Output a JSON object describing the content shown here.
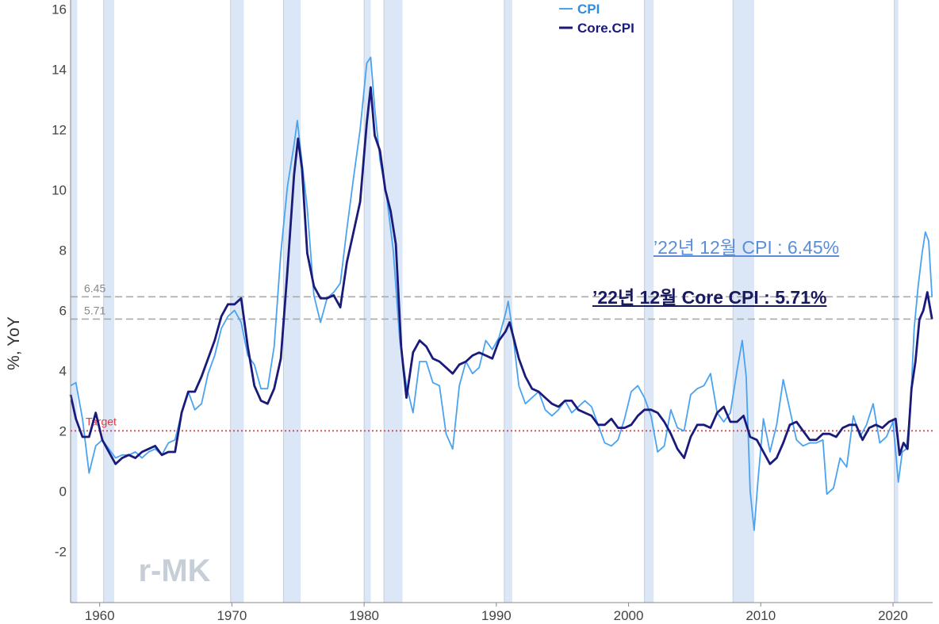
{
  "chart_data": {
    "type": "line",
    "xlabel": "",
    "ylabel": "%, YoY",
    "xlim": [
      1957.8,
      2023.0
    ],
    "ylim": [
      -3.7,
      16.3
    ],
    "x_ticks": [
      1960,
      1970,
      1980,
      1990,
      2000,
      2010,
      2020
    ],
    "x_tick_labels": [
      "1960",
      "1970",
      "1980",
      "1990",
      "2000",
      "2010",
      "2020"
    ],
    "y_ticks": [
      -2,
      0,
      2,
      4,
      6,
      8,
      10,
      12,
      14,
      16
    ],
    "y_tick_labels": [
      "-2",
      "0",
      "2",
      "4",
      "6",
      "8",
      "10",
      "12",
      "14",
      "16"
    ],
    "legend": {
      "position": "top-center",
      "entries": [
        "CPI",
        "Core.CPI"
      ]
    },
    "colors": {
      "CPI": "#4aa3f0",
      "Core.CPI": "#1a1a7a",
      "recession": "#dbe6f6",
      "reference": "#aaaaaa",
      "target": "#e0393e"
    },
    "recessions": [
      [
        1957.8,
        1958.3
      ],
      [
        1960.3,
        1961.1
      ],
      [
        1969.9,
        1970.9
      ],
      [
        1973.9,
        1975.2
      ],
      [
        1980.0,
        1980.5
      ],
      [
        1981.5,
        1982.9
      ],
      [
        1990.6,
        1991.2
      ],
      [
        2001.2,
        2001.9
      ],
      [
        2007.9,
        2009.5
      ],
      [
        2020.1,
        2020.4
      ]
    ],
    "reference_lines": [
      {
        "label": "6.45",
        "value": 6.45
      },
      {
        "label": "5.71",
        "value": 5.71
      }
    ],
    "target_line": {
      "label": "Target",
      "value": 2.0
    },
    "annotations": {
      "cpi": "’22년 12월 CPI : 6.45%",
      "core": "’22년 12월 Core CPI : 5.71%"
    },
    "watermark": "r-MK",
    "series": [
      {
        "name": "CPI",
        "x": [
          1957.8,
          1958.2,
          1958.7,
          1959.2,
          1959.7,
          1960.2,
          1960.7,
          1961.2,
          1961.7,
          1962.2,
          1962.7,
          1963.2,
          1963.7,
          1964.2,
          1964.7,
          1965.2,
          1965.7,
          1966.2,
          1966.7,
          1967.2,
          1967.7,
          1968.2,
          1968.7,
          1969.2,
          1969.7,
          1970.2,
          1970.7,
          1971.2,
          1971.7,
          1972.2,
          1972.7,
          1973.2,
          1973.7,
          1974.2,
          1974.7,
          1974.95,
          1975.2,
          1975.7,
          1976.2,
          1976.7,
          1977.2,
          1977.7,
          1978.2,
          1978.7,
          1979.2,
          1979.7,
          1980.2,
          1980.5,
          1980.8,
          1981.2,
          1981.7,
          1982.2,
          1982.7,
          1983.2,
          1983.7,
          1984.2,
          1984.7,
          1985.2,
          1985.7,
          1986.2,
          1986.7,
          1987.2,
          1987.7,
          1988.2,
          1988.7,
          1989.2,
          1989.7,
          1990.2,
          1990.7,
          1990.9,
          1991.2,
          1991.7,
          1992.2,
          1992.7,
          1993.2,
          1993.7,
          1994.2,
          1994.7,
          1995.2,
          1995.7,
          1996.2,
          1996.7,
          1997.2,
          1997.7,
          1998.2,
          1998.7,
          1999.2,
          1999.7,
          2000.2,
          2000.7,
          2001.2,
          2001.7,
          2002.2,
          2002.7,
          2003.2,
          2003.7,
          2004.2,
          2004.7,
          2005.2,
          2005.7,
          2006.2,
          2006.7,
          2007.2,
          2007.7,
          2008.2,
          2008.6,
          2008.9,
          2009.2,
          2009.5,
          2009.8,
          2010.2,
          2010.7,
          2011.2,
          2011.7,
          2012.2,
          2012.7,
          2013.2,
          2013.7,
          2014.2,
          2014.7,
          2015.0,
          2015.5,
          2016.0,
          2016.5,
          2017.0,
          2017.5,
          2018.0,
          2018.5,
          2019.0,
          2019.5,
          2020.0,
          2020.4,
          2020.7,
          2021.0,
          2021.3,
          2021.6,
          2021.9,
          2022.2,
          2022.45,
          2022.7,
          2022.95
        ],
        "values": [
          3.5,
          3.6,
          2.4,
          0.6,
          1.5,
          1.7,
          1.4,
          1.1,
          1.2,
          1.2,
          1.3,
          1.1,
          1.3,
          1.4,
          1.2,
          1.6,
          1.7,
          2.6,
          3.3,
          2.7,
          2.9,
          3.9,
          4.5,
          5.4,
          5.8,
          6.0,
          5.6,
          4.5,
          4.2,
          3.4,
          3.4,
          4.8,
          7.9,
          10.1,
          11.5,
          12.3,
          11.3,
          9.4,
          6.5,
          5.6,
          6.4,
          6.6,
          6.9,
          8.7,
          10.4,
          12.0,
          14.2,
          14.4,
          12.7,
          11.0,
          9.8,
          8.0,
          5.0,
          3.5,
          2.6,
          4.3,
          4.3,
          3.6,
          3.5,
          1.9,
          1.4,
          3.5,
          4.3,
          3.9,
          4.1,
          5.0,
          4.7,
          5.1,
          5.9,
          6.3,
          5.4,
          3.5,
          2.9,
          3.1,
          3.3,
          2.7,
          2.5,
          2.7,
          3.0,
          2.6,
          2.8,
          3.0,
          2.8,
          2.2,
          1.6,
          1.5,
          1.7,
          2.4,
          3.3,
          3.5,
          3.1,
          2.5,
          1.3,
          1.5,
          2.7,
          2.1,
          2.0,
          3.2,
          3.4,
          3.5,
          3.9,
          2.6,
          2.3,
          2.6,
          4.0,
          5.0,
          3.8,
          0.0,
          -1.3,
          0.4,
          2.4,
          1.3,
          2.2,
          3.7,
          2.7,
          1.7,
          1.5,
          1.6,
          1.6,
          1.7,
          -0.1,
          0.1,
          1.1,
          0.8,
          2.5,
          1.8,
          2.2,
          2.9,
          1.6,
          1.8,
          2.3,
          0.3,
          1.3,
          1.4,
          2.6,
          5.4,
          6.8,
          7.9,
          8.6,
          8.3,
          6.45
        ]
      },
      {
        "name": "Core.CPI",
        "x": [
          1957.8,
          1958.2,
          1958.7,
          1959.2,
          1959.7,
          1960.2,
          1960.7,
          1961.2,
          1961.7,
          1962.2,
          1962.7,
          1963.2,
          1963.7,
          1964.2,
          1964.7,
          1965.2,
          1965.7,
          1966.2,
          1966.7,
          1967.2,
          1967.7,
          1968.2,
          1968.7,
          1969.2,
          1969.7,
          1970.2,
          1970.7,
          1971.2,
          1971.7,
          1972.2,
          1972.7,
          1973.2,
          1973.7,
          1974.2,
          1974.7,
          1975.0,
          1975.3,
          1975.7,
          1976.2,
          1976.7,
          1977.2,
          1977.7,
          1978.2,
          1978.7,
          1979.2,
          1979.7,
          1980.2,
          1980.5,
          1980.8,
          1981.2,
          1981.6,
          1982.0,
          1982.4,
          1982.8,
          1983.2,
          1983.7,
          1984.2,
          1984.7,
          1985.2,
          1985.7,
          1986.2,
          1986.7,
          1987.2,
          1987.7,
          1988.2,
          1988.7,
          1989.2,
          1989.7,
          1990.2,
          1990.7,
          1991.0,
          1991.3,
          1991.7,
          1992.2,
          1992.7,
          1993.2,
          1993.7,
          1994.2,
          1994.7,
          1995.2,
          1995.7,
          1996.2,
          1996.7,
          1997.2,
          1997.7,
          1998.2,
          1998.7,
          1999.2,
          1999.7,
          2000.2,
          2000.7,
          2001.2,
          2001.7,
          2002.2,
          2002.7,
          2003.2,
          2003.7,
          2004.2,
          2004.7,
          2005.2,
          2005.7,
          2006.2,
          2006.7,
          2007.2,
          2007.7,
          2008.2,
          2008.7,
          2009.2,
          2009.7,
          2010.2,
          2010.7,
          2011.2,
          2011.7,
          2012.2,
          2012.7,
          2013.2,
          2013.7,
          2014.2,
          2014.7,
          2015.2,
          2015.7,
          2016.2,
          2016.7,
          2017.2,
          2017.7,
          2018.2,
          2018.7,
          2019.2,
          2019.7,
          2020.2,
          2020.5,
          2020.8,
          2021.1,
          2021.4,
          2021.7,
          2022.0,
          2022.3,
          2022.6,
          2022.95
        ],
        "values": [
          3.2,
          2.4,
          1.8,
          1.8,
          2.6,
          1.7,
          1.3,
          0.9,
          1.1,
          1.2,
          1.1,
          1.3,
          1.4,
          1.5,
          1.2,
          1.3,
          1.3,
          2.6,
          3.3,
          3.3,
          3.8,
          4.4,
          5.0,
          5.8,
          6.2,
          6.2,
          6.4,
          4.8,
          3.5,
          3.0,
          2.9,
          3.4,
          4.4,
          7.3,
          10.5,
          11.7,
          10.7,
          7.9,
          6.8,
          6.4,
          6.4,
          6.5,
          6.1,
          7.6,
          8.6,
          9.6,
          12.2,
          13.4,
          11.8,
          11.3,
          10.0,
          9.3,
          8.2,
          4.8,
          3.1,
          4.6,
          5.0,
          4.8,
          4.4,
          4.3,
          4.1,
          3.9,
          4.2,
          4.3,
          4.5,
          4.6,
          4.5,
          4.4,
          5.0,
          5.3,
          5.6,
          5.1,
          4.4,
          3.8,
          3.4,
          3.3,
          3.1,
          2.9,
          2.8,
          3.0,
          3.0,
          2.7,
          2.6,
          2.5,
          2.2,
          2.2,
          2.4,
          2.1,
          2.1,
          2.2,
          2.5,
          2.7,
          2.7,
          2.6,
          2.3,
          1.9,
          1.4,
          1.1,
          1.8,
          2.2,
          2.2,
          2.1,
          2.6,
          2.8,
          2.3,
          2.3,
          2.5,
          1.8,
          1.7,
          1.3,
          0.9,
          1.1,
          1.6,
          2.2,
          2.3,
          2.0,
          1.7,
          1.7,
          1.9,
          1.9,
          1.8,
          2.1,
          2.2,
          2.2,
          1.7,
          2.1,
          2.2,
          2.1,
          2.3,
          2.4,
          1.2,
          1.6,
          1.4,
          3.4,
          4.3,
          5.7,
          6.0,
          6.6,
          5.71
        ]
      }
    ]
  }
}
